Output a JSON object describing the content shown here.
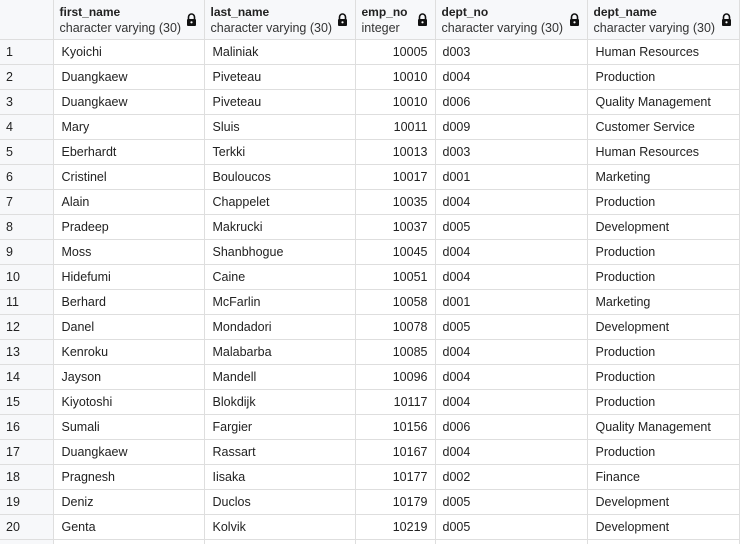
{
  "columns": [
    {
      "name": "",
      "type": ""
    },
    {
      "name": "first_name",
      "type": "character varying (30)",
      "icon": "lock-icon"
    },
    {
      "name": "last_name",
      "type": "character varying (30)",
      "icon": "lock-icon"
    },
    {
      "name": "emp_no",
      "type": "integer",
      "icon": "lock-icon"
    },
    {
      "name": "dept_no",
      "type": "character varying (30)",
      "icon": "lock-icon"
    },
    {
      "name": "dept_name",
      "type": "character varying (30)",
      "icon": "lock-icon"
    }
  ],
  "rows": [
    {
      "n": "1",
      "first_name": "Kyoichi",
      "last_name": "Maliniak",
      "emp_no": "10005",
      "dept_no": "d003",
      "dept_name": "Human Resources"
    },
    {
      "n": "2",
      "first_name": "Duangkaew",
      "last_name": "Piveteau",
      "emp_no": "10010",
      "dept_no": "d004",
      "dept_name": "Production"
    },
    {
      "n": "3",
      "first_name": "Duangkaew",
      "last_name": "Piveteau",
      "emp_no": "10010",
      "dept_no": "d006",
      "dept_name": "Quality Management"
    },
    {
      "n": "4",
      "first_name": "Mary",
      "last_name": "Sluis",
      "emp_no": "10011",
      "dept_no": "d009",
      "dept_name": "Customer Service"
    },
    {
      "n": "5",
      "first_name": "Eberhardt",
      "last_name": "Terkki",
      "emp_no": "10013",
      "dept_no": "d003",
      "dept_name": "Human Resources"
    },
    {
      "n": "6",
      "first_name": "Cristinel",
      "last_name": "Bouloucos",
      "emp_no": "10017",
      "dept_no": "d001",
      "dept_name": "Marketing"
    },
    {
      "n": "7",
      "first_name": "Alain",
      "last_name": "Chappelet",
      "emp_no": "10035",
      "dept_no": "d004",
      "dept_name": "Production"
    },
    {
      "n": "8",
      "first_name": "Pradeep",
      "last_name": "Makrucki",
      "emp_no": "10037",
      "dept_no": "d005",
      "dept_name": "Development"
    },
    {
      "n": "9",
      "first_name": "Moss",
      "last_name": "Shanbhogue",
      "emp_no": "10045",
      "dept_no": "d004",
      "dept_name": "Production"
    },
    {
      "n": "10",
      "first_name": "Hidefumi",
      "last_name": "Caine",
      "emp_no": "10051",
      "dept_no": "d004",
      "dept_name": "Production"
    },
    {
      "n": "11",
      "first_name": "Berhard",
      "last_name": "McFarlin",
      "emp_no": "10058",
      "dept_no": "d001",
      "dept_name": "Marketing"
    },
    {
      "n": "12",
      "first_name": "Danel",
      "last_name": "Mondadori",
      "emp_no": "10078",
      "dept_no": "d005",
      "dept_name": "Development"
    },
    {
      "n": "13",
      "first_name": "Kenroku",
      "last_name": "Malabarba",
      "emp_no": "10085",
      "dept_no": "d004",
      "dept_name": "Production"
    },
    {
      "n": "14",
      "first_name": "Jayson",
      "last_name": "Mandell",
      "emp_no": "10096",
      "dept_no": "d004",
      "dept_name": "Production"
    },
    {
      "n": "15",
      "first_name": "Kiyotoshi",
      "last_name": "Blokdijk",
      "emp_no": "10117",
      "dept_no": "d004",
      "dept_name": "Production"
    },
    {
      "n": "16",
      "first_name": "Sumali",
      "last_name": "Fargier",
      "emp_no": "10156",
      "dept_no": "d006",
      "dept_name": "Quality Management"
    },
    {
      "n": "17",
      "first_name": "Duangkaew",
      "last_name": "Rassart",
      "emp_no": "10167",
      "dept_no": "d004",
      "dept_name": "Production"
    },
    {
      "n": "18",
      "first_name": "Pragnesh",
      "last_name": "Iisaka",
      "emp_no": "10177",
      "dept_no": "d002",
      "dept_name": "Finance"
    },
    {
      "n": "19",
      "first_name": "Deniz",
      "last_name": "Duclos",
      "emp_no": "10179",
      "dept_no": "d005",
      "dept_name": "Development"
    },
    {
      "n": "20",
      "first_name": "Genta",
      "last_name": "Kolvik",
      "emp_no": "10219",
      "dept_no": "d005",
      "dept_name": "Development"
    }
  ]
}
